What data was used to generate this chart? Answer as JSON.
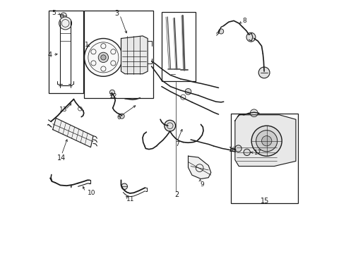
{
  "bg_color": "#ffffff",
  "line_color": "#1a1a1a",
  "fig_width": 4.9,
  "fig_height": 3.6,
  "dpi": 100,
  "boxes": {
    "reservoir": [
      0.01,
      0.63,
      0.135,
      0.34
    ],
    "pump": [
      0.135,
      0.62,
      0.28,
      0.34
    ],
    "bolts": [
      0.455,
      0.68,
      0.135,
      0.27
    ],
    "steering_gear": [
      0.73,
      0.195,
      0.265,
      0.355
    ]
  },
  "label_positions": {
    "1": [
      0.155,
      0.825,
      "right"
    ],
    "2": [
      0.545,
      0.235,
      "center"
    ],
    "3": [
      0.285,
      0.935,
      "center"
    ],
    "4": [
      0.005,
      0.785,
      "left"
    ],
    "5": [
      0.04,
      0.945,
      "left"
    ],
    "6": [
      0.285,
      0.535,
      "left"
    ],
    "7": [
      0.515,
      0.43,
      "left"
    ],
    "8": [
      0.775,
      0.91,
      "left"
    ],
    "9": [
      0.605,
      0.27,
      "left"
    ],
    "10": [
      0.18,
      0.235,
      "center"
    ],
    "11": [
      0.33,
      0.21,
      "center"
    ],
    "12": [
      0.255,
      0.615,
      "left"
    ],
    "13": [
      0.055,
      0.565,
      "left"
    ],
    "14": [
      0.06,
      0.365,
      "center"
    ],
    "15": [
      0.86,
      0.205,
      "center"
    ],
    "16": [
      0.755,
      0.4,
      "left"
    ],
    "17": [
      0.825,
      0.375,
      "left"
    ]
  }
}
